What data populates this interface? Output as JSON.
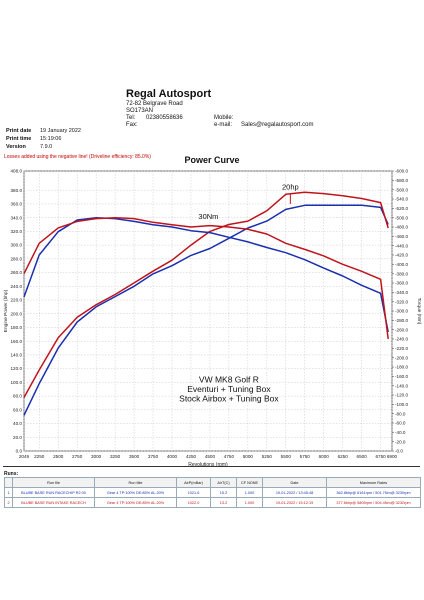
{
  "header": {
    "company": "Regal Autosport",
    "address_lines": [
      "72-82 Belgrave Road",
      "SO173AN"
    ],
    "tel_label": "Tel:",
    "tel_value": "02380558636",
    "fax_label": "Fax:",
    "mobile_label": "Mobile:",
    "email_label": "e-mail:",
    "email_value": "Sales@regalautosport.com"
  },
  "meta": {
    "print_date_label": "Print date",
    "print_date": "19 January 2022",
    "print_time_label": "Print time",
    "print_time": "15:19:06",
    "version_label": "Version",
    "version": "7.9.0"
  },
  "warning": "Losses added using the negative line! (Driveline efficiency: 85.0%)",
  "chart_data": {
    "type": "line",
    "title": "Power Curve",
    "xlabel": "Revolutions (rpm)",
    "ylabel_left": "Engine Power (bhp)",
    "ylabel_right": "Torque (Nm)",
    "xlim": [
      2049,
      6900
    ],
    "ylim_left": [
      0,
      408
    ],
    "ylim_right": [
      0,
      600
    ],
    "x_tick_labels": [
      "2049",
      "2250",
      "2500",
      "2750",
      "3000",
      "3250",
      "3500",
      "3750",
      "4000",
      "4250",
      "4500",
      "4750",
      "5000",
      "5250",
      "5500",
      "5750",
      "6000",
      "6250",
      "6500",
      "6750",
      "6900"
    ],
    "y_left_ticks": [
      0,
      20,
      40,
      60,
      80,
      100,
      120,
      140,
      160,
      180,
      200,
      220,
      240,
      260,
      280,
      300,
      320,
      340,
      360,
      380,
      408
    ],
    "y_right_ticks": [
      0,
      20,
      40,
      60,
      80,
      100,
      120,
      140,
      160,
      180,
      200,
      220,
      240,
      260,
      280,
      300,
      320,
      340,
      360,
      380,
      400,
      420,
      440,
      460,
      480,
      500,
      520,
      540,
      560,
      580,
      600
    ],
    "grid": true,
    "series": [
      {
        "name": "BLUBE BASE RUN RACECHIP R2.00",
        "color": "#1a2fb0",
        "axis": "left",
        "x": [
          2049,
          2250,
          2500,
          2750,
          3000,
          3250,
          3500,
          3750,
          4000,
          4250,
          4500,
          4750,
          5000,
          5250,
          5500,
          5750,
          6000,
          6250,
          6500,
          6750,
          6850
        ],
        "y": [
          52,
          98,
          150,
          188,
          210,
          225,
          240,
          258,
          270,
          285,
          295,
          310,
          325,
          335,
          352,
          358,
          358,
          358,
          358,
          355,
          330
        ]
      },
      {
        "name": "BLUBE BASE RUN INTAKE RACECH",
        "color": "#c0141c",
        "axis": "left",
        "x": [
          2049,
          2250,
          2500,
          2750,
          3000,
          3250,
          3500,
          3750,
          4000,
          4250,
          4500,
          4750,
          5000,
          5250,
          5500,
          5750,
          6000,
          6250,
          6500,
          6750,
          6850
        ],
        "y": [
          78,
          118,
          165,
          195,
          213,
          228,
          245,
          262,
          278,
          300,
          320,
          330,
          335,
          350,
          374,
          377,
          375,
          372,
          368,
          362,
          325
        ]
      },
      {
        "name": "BLUBE BASE RUN RACECHIP R2.00",
        "color": "#1a2fb0",
        "axis": "right",
        "x": [
          2049,
          2250,
          2500,
          2750,
          3000,
          3250,
          3500,
          3750,
          4000,
          4250,
          4500,
          4750,
          5000,
          5250,
          5500,
          5750,
          6000,
          6250,
          6500,
          6750,
          6850
        ],
        "y": [
          330,
          420,
          470,
          495,
          500,
          498,
          492,
          485,
          480,
          472,
          468,
          458,
          448,
          436,
          425,
          410,
          392,
          375,
          355,
          338,
          255
        ]
      },
      {
        "name": "BLUBE BASE RUN INTAKE RACECH",
        "color": "#c0141c",
        "axis": "right",
        "x": [
          2049,
          2250,
          2500,
          2750,
          3000,
          3250,
          3500,
          3750,
          4000,
          4250,
          4500,
          4750,
          5000,
          5250,
          5500,
          5750,
          6000,
          6250,
          6500,
          6750,
          6850
        ],
        "y": [
          380,
          445,
          478,
          492,
          498,
          500,
          498,
          490,
          485,
          480,
          483,
          480,
          475,
          465,
          445,
          432,
          418,
          400,
          385,
          368,
          240
        ]
      }
    ],
    "annotations": [
      "20hp",
      "30Nm"
    ],
    "notes": [
      "VW MK8 Golf R",
      "Eventuri + Tuning Box",
      "Stock Airbox + Tuning Box"
    ]
  },
  "runs": {
    "label": "Runs:",
    "headers": [
      "",
      "Run file",
      "Run title",
      "AirP(mBar)",
      "AirT(C)",
      "CF NONE",
      "Date",
      "Maximum Rates"
    ],
    "rows": [
      [
        "1",
        "BLUBE BASE RUN RACECHIP R2.00",
        "Gear 4 TP:100% DE:85% AL:20%",
        "1021.6",
        "15.2",
        "1.000",
        "19-01-2022 / 13:45:48",
        "362.8bhp@ 6161rpm / 501.7Nm@ 3230rpm"
      ],
      [
        "2",
        "BLUBE BASE RUN INTAKE RACECH",
        "Gear 4 TP:100% DE:85% AL:20%",
        "1022.0",
        "13.2",
        "1.000",
        "19-01-2022 / 15:12:19",
        "377.6bhp@ 5805rpm / 504.4Nm@ 3232rpm"
      ]
    ]
  }
}
